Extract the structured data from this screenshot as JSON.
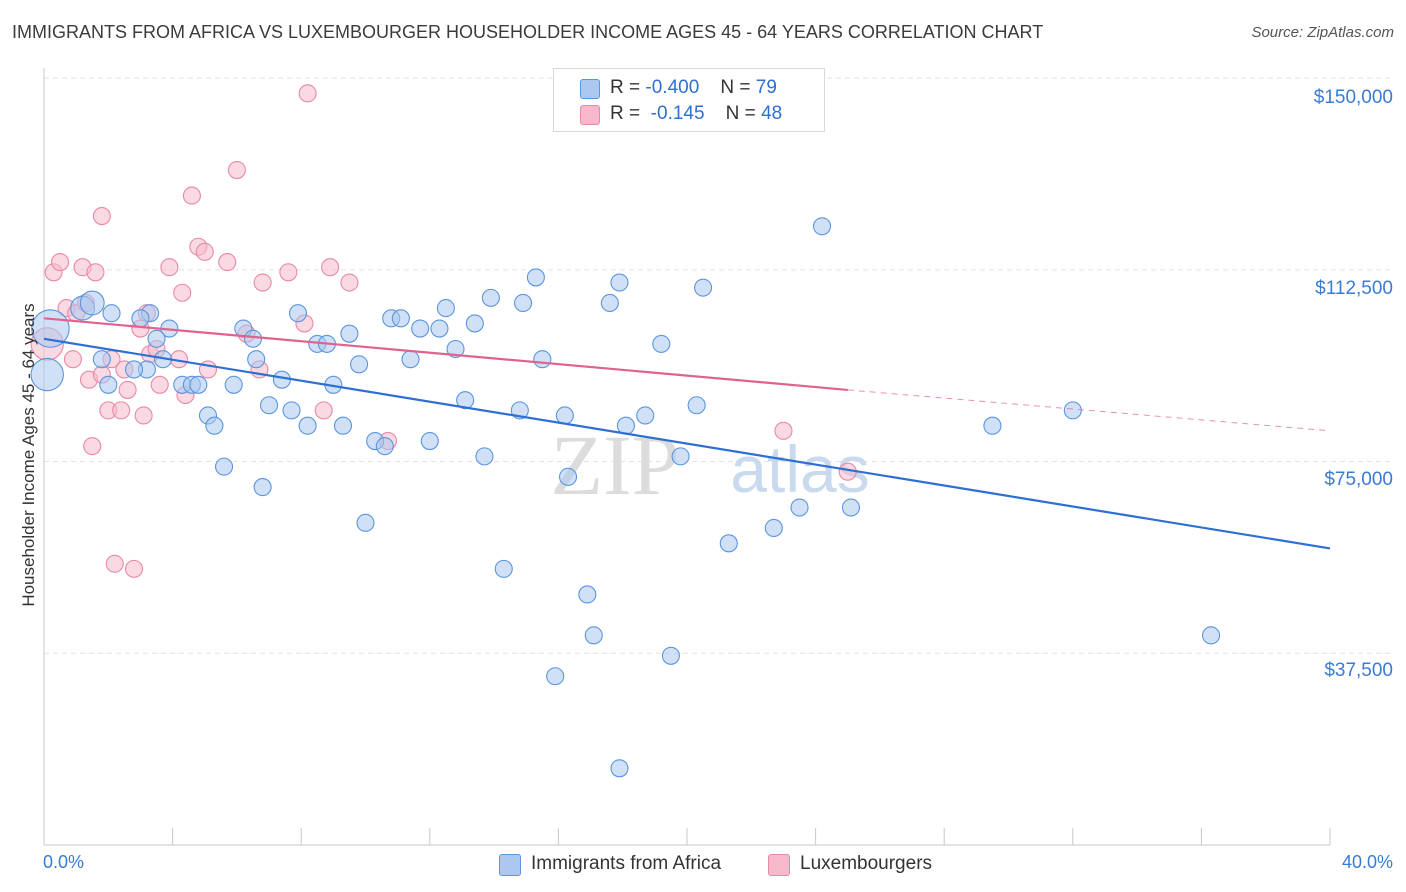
{
  "title": "IMMIGRANTS FROM AFRICA VS LUXEMBOURGER HOUSEHOLDER INCOME AGES 45 - 64 YEARS CORRELATION CHART",
  "source": "Source: ZipAtlas.com",
  "watermark": {
    "zip": "ZIP",
    "atlas": "atlas"
  },
  "stats": [
    {
      "r_label": "R =",
      "r_value": "-0.400",
      "n_label": "N =",
      "n_value": "79"
    },
    {
      "r_label": "R =",
      "r_value": "-0.145",
      "n_label": "N =",
      "n_value": "48"
    }
  ],
  "legend": [
    {
      "label": "Immigrants from Africa"
    },
    {
      "label": "Luxembourgers"
    }
  ],
  "colors": {
    "blue_fill": "#aac8f0",
    "blue_stroke": "#5b95de",
    "blue_line": "#2d6fd3",
    "pink_fill": "#f6b9cb",
    "pink_stroke": "#e889a6",
    "pink_line": "#e0628d",
    "grid": "#e3e3e3",
    "tick_label": "#3a7bd5"
  },
  "chart_data": {
    "type": "scatter",
    "title": "IMMIGRANTS FROM AFRICA VS LUXEMBOURGER HOUSEHOLDER INCOME AGES 45 - 64 YEARS CORRELATION CHART",
    "xlabel": "",
    "ylabel": "Householder Income Ages 45 - 64 years",
    "xlim": [
      0,
      40
    ],
    "ylim": [
      0,
      157000
    ],
    "x_tick_labels": [
      "0.0%",
      "40.0%"
    ],
    "y_ticks": [
      {
        "value": 37500,
        "label": "$37,500"
      },
      {
        "value": 75000,
        "label": "$75,000"
      },
      {
        "value": 112500,
        "label": "$112,500"
      },
      {
        "value": 150000,
        "label": "$150,000"
      }
    ],
    "grid": true,
    "legend_position": "bottom-center",
    "series": [
      {
        "name": "Immigrants from Africa",
        "r": -0.4,
        "n": 79,
        "trend": {
          "x1": 0,
          "y1": 99000,
          "x2": 40,
          "y2": 58000
        },
        "points": [
          [
            0.2,
            101000,
            2.2
          ],
          [
            0.1,
            92000,
            1.9
          ],
          [
            1.2,
            105000,
            1.4
          ],
          [
            1.5,
            106000,
            1.4
          ],
          [
            2.1,
            104000,
            1
          ],
          [
            2.0,
            90000,
            1
          ],
          [
            1.8,
            95000,
            1
          ],
          [
            3.3,
            104000,
            1
          ],
          [
            3.0,
            103000,
            1
          ],
          [
            3.9,
            101000,
            1
          ],
          [
            3.5,
            99000,
            1
          ],
          [
            3.2,
            93000,
            1
          ],
          [
            3.7,
            95000,
            1
          ],
          [
            4.3,
            90000,
            1
          ],
          [
            4.6,
            90000,
            1
          ],
          [
            4.8,
            90000,
            1
          ],
          [
            5.1,
            84000,
            1
          ],
          [
            5.3,
            82000,
            1
          ],
          [
            5.6,
            74000,
            1
          ],
          [
            5.9,
            90000,
            1
          ],
          [
            6.2,
            101000,
            1
          ],
          [
            6.5,
            99000,
            1
          ],
          [
            6.8,
            70000,
            1
          ],
          [
            7.0,
            86000,
            1
          ],
          [
            7.4,
            91000,
            1
          ],
          [
            7.7,
            85000,
            1
          ],
          [
            7.9,
            104000,
            1
          ],
          [
            8.2,
            82000,
            1
          ],
          [
            8.5,
            98000,
            1
          ],
          [
            8.8,
            98000,
            1
          ],
          [
            9.0,
            90000,
            1
          ],
          [
            9.3,
            82000,
            1
          ],
          [
            9.5,
            100000,
            1
          ],
          [
            9.8,
            94000,
            1
          ],
          [
            10.0,
            63000,
            1
          ],
          [
            10.3,
            79000,
            1
          ],
          [
            10.6,
            78000,
            1
          ],
          [
            10.8,
            103000,
            1
          ],
          [
            11.1,
            103000,
            1
          ],
          [
            11.4,
            95000,
            1
          ],
          [
            11.7,
            101000,
            1
          ],
          [
            12.0,
            79000,
            1
          ],
          [
            12.3,
            101000,
            1
          ],
          [
            12.5,
            105000,
            1
          ],
          [
            12.8,
            97000,
            1
          ],
          [
            13.1,
            87000,
            1
          ],
          [
            13.4,
            102000,
            1
          ],
          [
            13.7,
            76000,
            1
          ],
          [
            13.9,
            107000,
            1
          ],
          [
            14.3,
            54000,
            1
          ],
          [
            14.8,
            85000,
            1
          ],
          [
            14.9,
            106000,
            1
          ],
          [
            15.3,
            111000,
            1
          ],
          [
            15.5,
            95000,
            1
          ],
          [
            15.9,
            33000,
            1
          ],
          [
            16.3,
            72000,
            1
          ],
          [
            16.2,
            84000,
            1
          ],
          [
            16.9,
            49000,
            1
          ],
          [
            17.1,
            41000,
            1
          ],
          [
            17.6,
            106000,
            1
          ],
          [
            17.9,
            110000,
            1
          ],
          [
            17.9,
            15000,
            1
          ],
          [
            18.1,
            82000,
            1
          ],
          [
            18.7,
            84000,
            1
          ],
          [
            19.2,
            98000,
            1
          ],
          [
            19.5,
            37000,
            1
          ],
          [
            19.8,
            76000,
            1
          ],
          [
            20.3,
            86000,
            1
          ],
          [
            20.5,
            109000,
            1
          ],
          [
            21.3,
            59000,
            1
          ],
          [
            22.7,
            62000,
            1
          ],
          [
            23.5,
            66000,
            1
          ],
          [
            24.2,
            121000,
            1
          ],
          [
            25.1,
            66000,
            1
          ],
          [
            29.5,
            82000,
            1
          ],
          [
            32.0,
            85000,
            1
          ],
          [
            36.3,
            41000,
            1
          ],
          [
            2.8,
            93000,
            1
          ],
          [
            6.6,
            95000,
            1
          ]
        ]
      },
      {
        "name": "Luxembourgers",
        "r": -0.145,
        "n": 48,
        "trend": {
          "x1": 0,
          "y1": 103000,
          "x2": 25,
          "y2": 89000,
          "dash_to": {
            "x": 40,
            "y": 81000
          }
        },
        "points": [
          [
            0.1,
            98000,
            1.9
          ],
          [
            0.3,
            112000,
            1
          ],
          [
            0.5,
            114000,
            1
          ],
          [
            0.7,
            105000,
            1
          ],
          [
            1.0,
            104000,
            1
          ],
          [
            1.2,
            113000,
            1
          ],
          [
            1.4,
            91000,
            1
          ],
          [
            1.5,
            78000,
            1
          ],
          [
            1.6,
            112000,
            1
          ],
          [
            1.8,
            92000,
            1
          ],
          [
            1.8,
            123000,
            1
          ],
          [
            2.0,
            85000,
            1
          ],
          [
            2.1,
            95000,
            1
          ],
          [
            2.2,
            55000,
            1
          ],
          [
            2.4,
            85000,
            1
          ],
          [
            2.5,
            93000,
            1
          ],
          [
            2.6,
            89000,
            1
          ],
          [
            2.8,
            54000,
            1
          ],
          [
            3.0,
            101000,
            1
          ],
          [
            3.1,
            84000,
            1
          ],
          [
            3.3,
            96000,
            1
          ],
          [
            3.5,
            97000,
            1
          ],
          [
            3.6,
            90000,
            1
          ],
          [
            3.9,
            113000,
            1
          ],
          [
            4.2,
            95000,
            1
          ],
          [
            4.3,
            108000,
            1
          ],
          [
            4.4,
            88000,
            1
          ],
          [
            4.6,
            127000,
            1
          ],
          [
            4.8,
            117000,
            1
          ],
          [
            5.0,
            116000,
            1
          ],
          [
            5.1,
            93000,
            1
          ],
          [
            5.7,
            114000,
            1
          ],
          [
            6.0,
            132000,
            1
          ],
          [
            6.3,
            100000,
            1
          ],
          [
            6.8,
            110000,
            1
          ],
          [
            6.7,
            93000,
            1
          ],
          [
            7.6,
            112000,
            1
          ],
          [
            8.2,
            147000,
            1
          ],
          [
            8.7,
            85000,
            1
          ],
          [
            9.5,
            110000,
            1
          ],
          [
            8.9,
            113000,
            1
          ],
          [
            10.7,
            79000,
            1
          ],
          [
            23.0,
            81000,
            1
          ],
          [
            25.0,
            73000,
            1
          ],
          [
            3.2,
            104000,
            1
          ],
          [
            0.9,
            95000,
            1
          ],
          [
            8.1,
            102000,
            1
          ],
          [
            1.3,
            106000,
            1
          ]
        ]
      }
    ]
  }
}
